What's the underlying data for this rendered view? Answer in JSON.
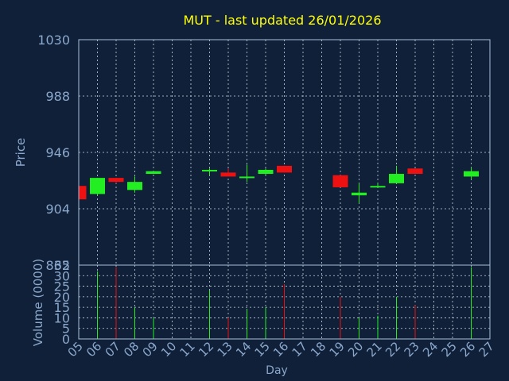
{
  "chart_data": {
    "type": "candlestick",
    "title": "MUT - last updated 26/01/2026",
    "xlabel": "Day",
    "price_ylabel": "Price",
    "volume_ylabel": "Volume (0000)",
    "price_ylim": [
      862,
      1030
    ],
    "price_ticks": [
      "1030",
      "988",
      "946",
      "904",
      "862"
    ],
    "volume_ylim": [
      0,
      35
    ],
    "volume_ticks": [
      "35",
      "30",
      "25",
      "20",
      "15",
      "10",
      "5",
      "0"
    ],
    "x_ticks": [
      "05",
      "06",
      "07",
      "08",
      "09",
      "10",
      "11",
      "12",
      "13",
      "14",
      "15",
      "16",
      "17",
      "18",
      "19",
      "20",
      "21",
      "22",
      "23",
      "24",
      "25",
      "26",
      "27"
    ],
    "candles": [
      {
        "day": "05",
        "open": 921,
        "high": 921,
        "low": 911,
        "close": 911,
        "volume": 0
      },
      {
        "day": "06",
        "open": 915,
        "high": 927,
        "low": 914,
        "close": 927,
        "volume": 32
      },
      {
        "day": "07",
        "open": 927,
        "high": 927,
        "low": 923,
        "close": 924,
        "volume": 34
      },
      {
        "day": "08",
        "open": 918,
        "high": 928,
        "low": 916,
        "close": 924,
        "volume": 15
      },
      {
        "day": "09",
        "open": 930,
        "high": 932,
        "low": 930,
        "close": 932,
        "volume": 10
      },
      {
        "day": "12",
        "open": 932,
        "high": 934,
        "low": 929,
        "close": 933,
        "volume": 23
      },
      {
        "day": "13",
        "open": 931,
        "high": 934,
        "low": 928,
        "close": 928,
        "volume": 10
      },
      {
        "day": "14",
        "open": 928,
        "high": 937,
        "low": 924,
        "close": 928,
        "volume": 14
      },
      {
        "day": "15",
        "open": 930,
        "high": 934,
        "low": 929,
        "close": 933,
        "volume": 15
      },
      {
        "day": "16",
        "open": 936,
        "high": 936,
        "low": 931,
        "close": 931,
        "volume": 26
      },
      {
        "day": "19",
        "open": 929,
        "high": 929,
        "low": 920,
        "close": 920,
        "volume": 20
      },
      {
        "day": "20",
        "open": 914,
        "high": 923,
        "low": 908,
        "close": 916,
        "volume": 10
      },
      {
        "day": "21",
        "open": 920,
        "high": 923,
        "low": 920,
        "close": 921,
        "volume": 11
      },
      {
        "day": "22",
        "open": 923,
        "high": 936,
        "low": 923,
        "close": 930,
        "volume": 20
      },
      {
        "day": "23",
        "open": 934,
        "high": 934,
        "low": 930,
        "close": 930,
        "volume": 16
      },
      {
        "day": "26",
        "open": 928,
        "high": 935,
        "low": 926,
        "close": 932,
        "volume": 34
      }
    ],
    "colors": {
      "background": "#102039",
      "axis": "#a8c0dc",
      "grid": "#c8d4e0",
      "label": "#8aa8cc",
      "title": "#ffff00",
      "up": "#22ee22",
      "down": "#ee1111"
    }
  }
}
